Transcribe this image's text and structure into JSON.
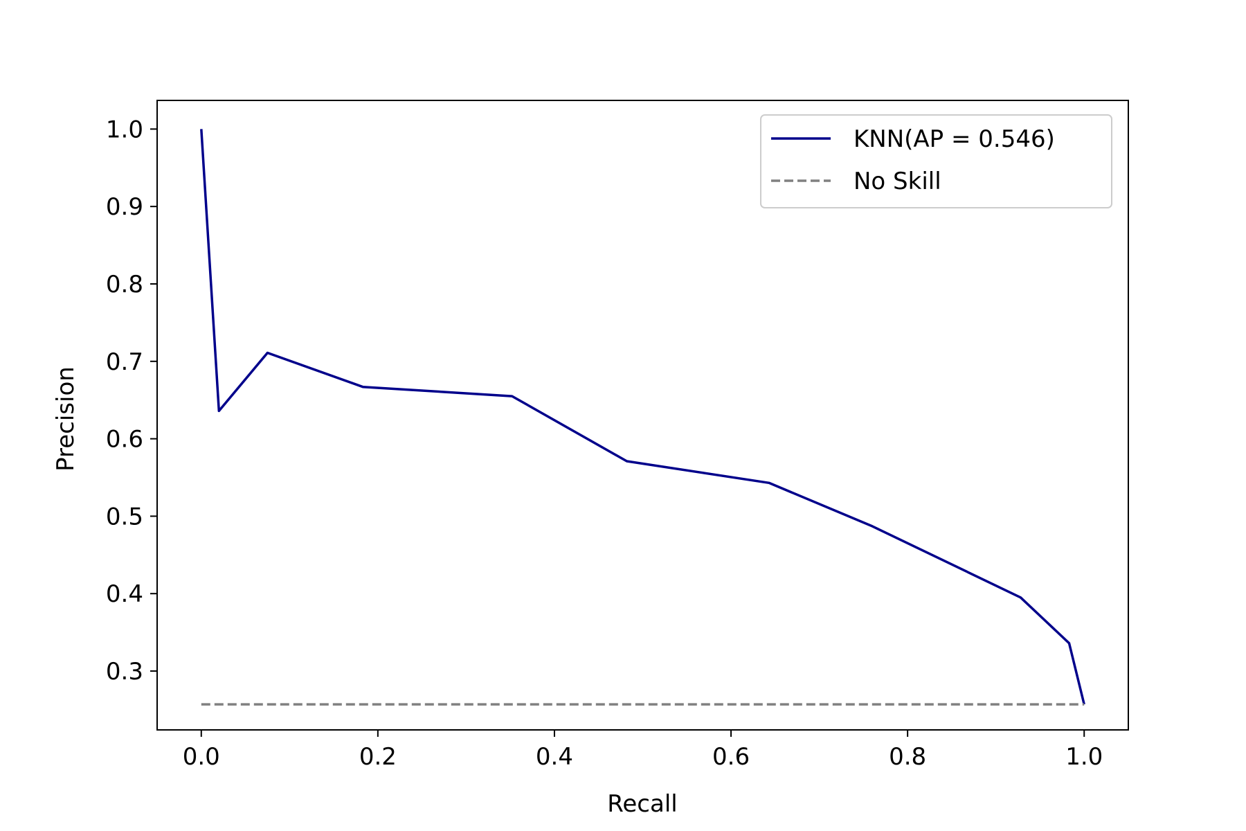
{
  "chart_data": {
    "type": "line",
    "title": "",
    "xlabel": "Recall",
    "ylabel": "Precision",
    "xlim": [
      -0.05,
      1.05
    ],
    "ylim": [
      0.224,
      1.037
    ],
    "xticks": [
      0.0,
      0.2,
      0.4,
      0.6,
      0.8,
      1.0
    ],
    "yticks": [
      0.3,
      0.4,
      0.5,
      0.6,
      0.7,
      0.8,
      0.9,
      1.0
    ],
    "xtick_labels": [
      "0.0",
      "0.2",
      "0.4",
      "0.6",
      "0.8",
      "1.0"
    ],
    "ytick_labels": [
      "0.3",
      "0.4",
      "0.5",
      "0.6",
      "0.7",
      "0.8",
      "0.9",
      "1.0"
    ],
    "grid": false,
    "legend": {
      "placement": "upper-right"
    },
    "series": [
      {
        "name": "KNN(AP = 0.546)",
        "color": "#00008b",
        "style": "solid",
        "points": [
          [
            0.0,
            1.0
          ],
          [
            0.02,
            0.636
          ],
          [
            0.075,
            0.711
          ],
          [
            0.183,
            0.667
          ],
          [
            0.352,
            0.655
          ],
          [
            0.482,
            0.571
          ],
          [
            0.643,
            0.543
          ],
          [
            0.76,
            0.487
          ],
          [
            0.928,
            0.395
          ],
          [
            0.983,
            0.336
          ],
          [
            1.0,
            0.257
          ]
        ]
      },
      {
        "name": "No Skill",
        "color": "#808080",
        "style": "dashed",
        "points": [
          [
            0.0,
            0.257
          ],
          [
            1.0,
            0.257
          ]
        ]
      }
    ]
  }
}
